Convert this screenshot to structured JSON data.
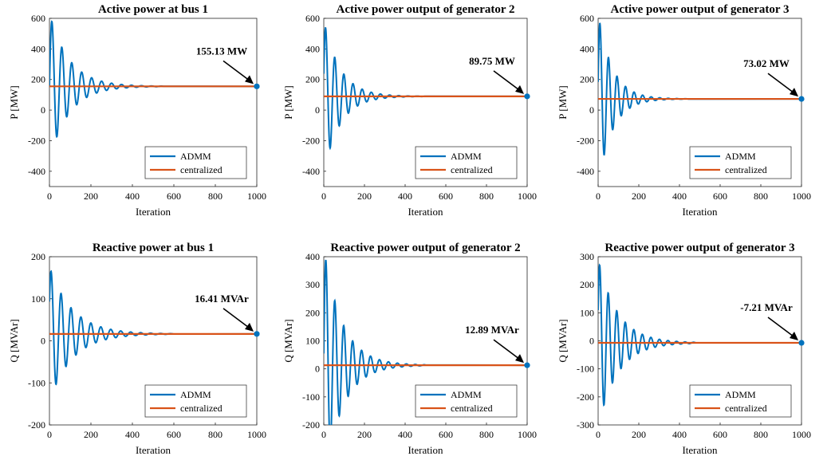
{
  "colors": {
    "admm": "#0072BD",
    "centralized": "#D95319",
    "marker": "#0072BD"
  },
  "chart_data": [
    {
      "type": "line",
      "title": "Active power at bus 1",
      "xlabel": "Iteration",
      "ylabel": "P [MW]",
      "xlim": [
        0,
        1000
      ],
      "ylim": [
        -500,
        600
      ],
      "xticks": [
        0,
        200,
        400,
        600,
        800,
        1000
      ],
      "yticks": [
        -400,
        -200,
        0,
        200,
        400,
        600
      ],
      "final_value": 155.13,
      "annotation": "155.13 MW",
      "amplitude": 480,
      "decay": 95,
      "period": 48,
      "phase": 0,
      "settle": 550,
      "grid": false,
      "legend_position": "bottom-right",
      "series": [
        {
          "name": "ADMM",
          "values_desc": "damped oscillation converging to final value"
        },
        {
          "name": "centralized",
          "values": [
            155.13,
            155.13
          ]
        }
      ]
    },
    {
      "type": "line",
      "title": "Active power output of generator 2",
      "xlabel": "Iteration",
      "ylabel": "P [MW]",
      "xlim": [
        0,
        1000
      ],
      "ylim": [
        -500,
        600
      ],
      "xticks": [
        0,
        200,
        400,
        600,
        800,
        1000
      ],
      "yticks": [
        -400,
        -200,
        0,
        200,
        400,
        600
      ],
      "final_value": 89.75,
      "annotation": "89.75 MW",
      "amplitude": 500,
      "decay": 80,
      "period": 45,
      "phase": 0.3,
      "settle": 500,
      "grid": false,
      "legend_position": "bottom-right",
      "series": [
        {
          "name": "ADMM"
        },
        {
          "name": "centralized",
          "values": [
            89.75,
            89.75
          ]
        }
      ]
    },
    {
      "type": "line",
      "title": "Active power output of generator 3",
      "xlabel": "Iteration",
      "ylabel": "P [MW]",
      "xlim": [
        0,
        1000
      ],
      "ylim": [
        -500,
        600
      ],
      "xticks": [
        0,
        200,
        400,
        600,
        800,
        1000
      ],
      "yticks": [
        -400,
        -200,
        0,
        200,
        400,
        600
      ],
      "final_value": 73.02,
      "annotation": "73.02 MW",
      "amplitude": 560,
      "decay": 70,
      "period": 42,
      "phase": 0.2,
      "settle": 450,
      "grid": false,
      "legend_position": "bottom-right",
      "series": [
        {
          "name": "ADMM"
        },
        {
          "name": "centralized",
          "values": [
            73.02,
            73.02
          ]
        }
      ]
    },
    {
      "type": "line",
      "title": "Reactive power at bus 1",
      "xlabel": "Iteration",
      "ylabel": "Q [MVAr]",
      "xlim": [
        0,
        1000
      ],
      "ylim": [
        -200,
        200
      ],
      "xticks": [
        0,
        200,
        400,
        600,
        800,
        1000
      ],
      "yticks": [
        -200,
        -100,
        0,
        100,
        200
      ],
      "final_value": 16.41,
      "annotation": "16.41 MVAr",
      "amplitude": 160,
      "decay": 110,
      "period": 48,
      "phase": 0.5,
      "settle": 600,
      "grid": false,
      "legend_position": "bottom-right",
      "series": [
        {
          "name": "ADMM"
        },
        {
          "name": "centralized",
          "values": [
            16.41,
            16.41
          ]
        }
      ]
    },
    {
      "type": "line",
      "title": "Reactive power output of generator 2",
      "xlabel": "Iteration",
      "ylabel": "Q [MVAr]",
      "xlim": [
        0,
        1000
      ],
      "ylim": [
        -200,
        400
      ],
      "xticks": [
        0,
        200,
        400,
        600,
        800,
        1000
      ],
      "yticks": [
        -200,
        -100,
        0,
        100,
        200,
        300,
        400
      ],
      "final_value": 12.89,
      "annotation": "12.89 MVAr",
      "amplitude": 420,
      "decay": 90,
      "period": 44,
      "phase": 0.1,
      "settle": 500,
      "grid": false,
      "legend_position": "bottom-right",
      "series": [
        {
          "name": "ADMM"
        },
        {
          "name": "centralized",
          "values": [
            12.89,
            12.89
          ]
        }
      ]
    },
    {
      "type": "line",
      "title": "Reactive power output of generator 3",
      "xlabel": "Iteration",
      "ylabel": "Q [MVAr]",
      "xlim": [
        0,
        1000
      ],
      "ylim": [
        -300,
        300
      ],
      "xticks": [
        0,
        200,
        400,
        600,
        800,
        1000
      ],
      "yticks": [
        -300,
        -200,
        -100,
        0,
        100,
        200,
        300
      ],
      "final_value": -7.21,
      "annotation": "-7.21 MVAr",
      "amplitude": 300,
      "decay": 95,
      "period": 42,
      "phase": 0.4,
      "settle": 480,
      "grid": false,
      "legend_position": "bottom-right",
      "series": [
        {
          "name": "ADMM"
        },
        {
          "name": "centralized",
          "values": [
            -7.21,
            -7.21
          ]
        }
      ]
    }
  ]
}
